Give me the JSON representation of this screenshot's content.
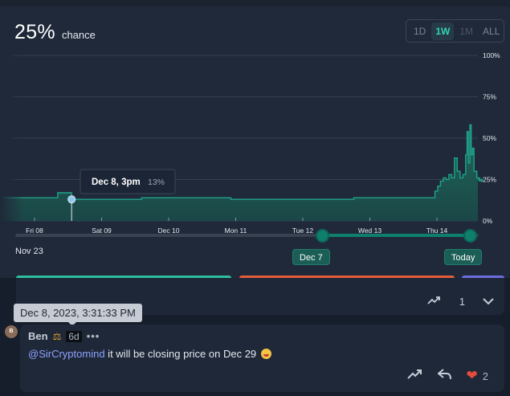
{
  "market": {
    "probability": "25%",
    "probability_label": "chance",
    "ranges": [
      {
        "label": "1D",
        "active": false,
        "enabled": true
      },
      {
        "label": "1W",
        "active": true,
        "enabled": true
      },
      {
        "label": "1M",
        "active": false,
        "enabled": false
      },
      {
        "label": "ALL",
        "active": false,
        "enabled": true
      }
    ]
  },
  "chart_data": {
    "type": "area",
    "title": "",
    "xlabel": "",
    "ylabel": "",
    "x_ticks": [
      "Fri 08",
      "Sat 09",
      "Dec 10",
      "Mon 11",
      "Tue 12",
      "Wed 13",
      "Thu 14"
    ],
    "y_ticks": [
      "0%",
      "25%",
      "50%",
      "75%",
      "100%"
    ],
    "ylim": [
      0,
      100
    ],
    "grid": true,
    "series": [
      {
        "color": "#1fa389",
        "x": [
          "Dec 7 18:00",
          "Dec 8 00:00",
          "Dec 8 09:00",
          "Dec 8 10:00",
          "Dec 8 15:00",
          "Dec 9 00:00",
          "Dec 9 16:00",
          "Dec 10 00:00",
          "Dec 10 12:00",
          "Dec 11 00:00",
          "Dec 11 16:00",
          "Dec 12 00:00",
          "Dec 12 10:00",
          "Dec 12 20:00",
          "Dec 13 00:00",
          "Dec 13 12:00",
          "Dec 13 20:00",
          "Dec 14 00:00",
          "Dec 14 01:00",
          "Dec 14 02:00",
          "Dec 14 03:00",
          "Dec 14 04:00",
          "Dec 14 05:00",
          "Dec 14 06:00",
          "Dec 14 07:00",
          "Dec 14 08:00",
          "Dec 14 09:00",
          "Dec 14 10:00",
          "Dec 14 11:00",
          "Dec 14 12:00",
          "Dec 14 12:30",
          "Dec 14 13:00",
          "Dec 14 13:30",
          "Dec 14 14:00",
          "Dec 14 14:30",
          "Dec 14 15:00",
          "Dec 14 16:00",
          "Dec 14 17:00",
          "Dec 14 18:00"
        ],
        "y": [
          14,
          14,
          14,
          17,
          13,
          13,
          14,
          14,
          14,
          13,
          13,
          13,
          13,
          14,
          14,
          14,
          14,
          14,
          18,
          21,
          24,
          26,
          25,
          28,
          26,
          38,
          30,
          26,
          28,
          40,
          54,
          35,
          58,
          40,
          44,
          30,
          26,
          24,
          25
        ]
      }
    ],
    "highlight": {
      "x": "Dec 8 15:00",
      "y": 13,
      "label": "Dec 8, 3pm",
      "value_label": "13%"
    }
  },
  "range_slider": {
    "start_label": "Nov 23",
    "from_label": "Dec 7",
    "to_label": "Today"
  },
  "comments": {
    "previous": {
      "like_count": "1"
    },
    "current": {
      "timestamp_tooltip": "Dec 8, 2023, 3:31:33 PM",
      "avatar_initial": "B",
      "author": "Ben",
      "author_badge": "scale-icon",
      "age": "6d",
      "more": "•••",
      "mention": "@SirCryptomind",
      "text": " it will be closing price on Dec 29",
      "emoji": "laughing-emoji",
      "like_count": "2"
    }
  }
}
